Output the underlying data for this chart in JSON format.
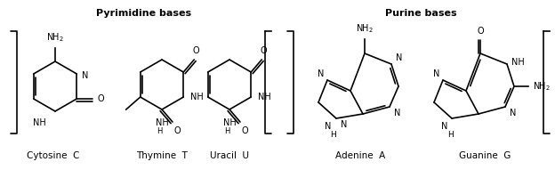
{
  "title_pyrimidine": "Pyrimidine bases",
  "title_purine": "Purine bases",
  "label_cytosine": "Cytosine  C",
  "label_thymine": "Thymine  T",
  "label_uracil": "Uracil  U",
  "label_adenine": "Adenine  A",
  "label_guanine": "Guanine  G",
  "bg_color": "#ffffff",
  "line_color": "#000000",
  "text_color": "#000000",
  "figsize": [
    6.24,
    1.91
  ],
  "dpi": 100
}
